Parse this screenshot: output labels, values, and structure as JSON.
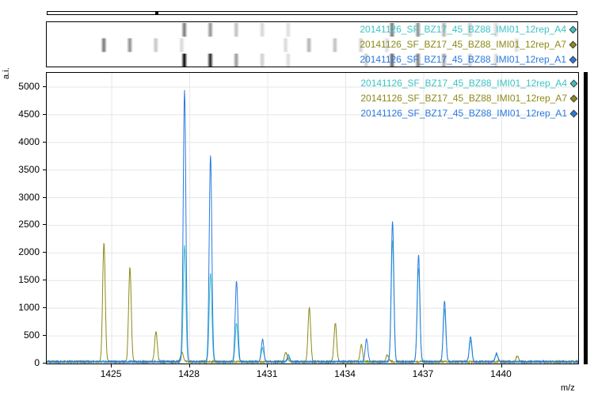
{
  "legend": [
    {
      "label": "20141126_SF_BZ17_45_BZ88_IMI01_12rep_A4",
      "color": "#3cc4c4"
    },
    {
      "label": "20141126_SF_BZ17_45_BZ88_IMI01_12rep_A7",
      "color": "#8c8a18"
    },
    {
      "label": "20141126_SF_BZ17_45_BZ88_IMI01_12rep_A1",
      "color": "#2a7ae0"
    }
  ],
  "axes": {
    "y_label": "a.i.",
    "x_label": "m/z"
  },
  "chart_data": {
    "type": "line",
    "xlabel": "m/z",
    "ylabel": "a.i.",
    "xlim": [
      1422.5,
      1443
    ],
    "ylim": [
      0,
      5200
    ],
    "x_ticks": [
      1425,
      1428,
      1431,
      1434,
      1437,
      1440
    ],
    "y_ticks": [
      0,
      500,
      1000,
      1500,
      2000,
      2500,
      3000,
      3500,
      4000,
      4500,
      5000
    ],
    "grid": true,
    "legend_position": "top-right",
    "series": [
      {
        "name": "20141126_SF_BZ17_45_BZ88_IMI01_12rep_A4",
        "color": "#3cc4c4",
        "peaks": [
          {
            "mz": 1427.8,
            "intensity": 2100
          },
          {
            "mz": 1428.8,
            "intensity": 1600
          },
          {
            "mz": 1429.8,
            "intensity": 700
          },
          {
            "mz": 1430.8,
            "intensity": 250
          },
          {
            "mz": 1431.8,
            "intensity": 80
          },
          {
            "mz": 1435.8,
            "intensity": 2200
          },
          {
            "mz": 1436.8,
            "intensity": 1700
          },
          {
            "mz": 1437.8,
            "intensity": 950
          },
          {
            "mz": 1438.8,
            "intensity": 380
          },
          {
            "mz": 1439.8,
            "intensity": 120
          }
        ]
      },
      {
        "name": "20141126_SF_BZ17_45_BZ88_IMI01_12rep_A7",
        "color": "#8c8a18",
        "peaks": [
          {
            "mz": 1424.7,
            "intensity": 2150
          },
          {
            "mz": 1425.7,
            "intensity": 1700
          },
          {
            "mz": 1426.7,
            "intensity": 550
          },
          {
            "mz": 1427.7,
            "intensity": 180
          },
          {
            "mz": 1431.7,
            "intensity": 170
          },
          {
            "mz": 1432.6,
            "intensity": 980
          },
          {
            "mz": 1433.6,
            "intensity": 700
          },
          {
            "mz": 1434.6,
            "intensity": 300
          },
          {
            "mz": 1435.6,
            "intensity": 120
          },
          {
            "mz": 1440.6,
            "intensity": 110
          }
        ]
      },
      {
        "name": "20141126_SF_BZ17_45_BZ88_IMI01_12rep_A1",
        "color": "#2a7ae0",
        "peaks": [
          {
            "mz": 1427.8,
            "intensity": 4920
          },
          {
            "mz": 1428.8,
            "intensity": 3750
          },
          {
            "mz": 1429.8,
            "intensity": 1470
          },
          {
            "mz": 1430.8,
            "intensity": 400
          },
          {
            "mz": 1431.8,
            "intensity": 110
          },
          {
            "mz": 1434.8,
            "intensity": 410
          },
          {
            "mz": 1435.8,
            "intensity": 2540
          },
          {
            "mz": 1436.8,
            "intensity": 1930
          },
          {
            "mz": 1437.8,
            "intensity": 1100
          },
          {
            "mz": 1438.8,
            "intensity": 450
          },
          {
            "mz": 1439.8,
            "intensity": 160
          }
        ]
      }
    ]
  }
}
